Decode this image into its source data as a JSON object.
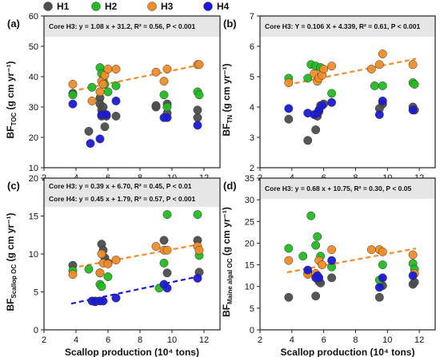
{
  "legend": {
    "entries": [
      {
        "name": "H1",
        "color": "#4d4d4d"
      },
      {
        "name": "H2",
        "color": "#22bb22"
      },
      {
        "name": "H3",
        "color": "#f28c28"
      },
      {
        "name": "H4",
        "color": "#1a1ad6"
      }
    ]
  },
  "xlabel": "Scallop production (10⁴ tons)",
  "chart_data": [
    {
      "panel": "(a)",
      "type": "scatter",
      "ylabel_main": "BF",
      "ylabel_sub": "TOC",
      "ylabel_unit": " (g cm yr⁻¹)",
      "annotation": "Core H3:  y = 1.08 x + 31.2, R² = 0.56, P < 0.001",
      "xlim": [
        2,
        13
      ],
      "ylim": [
        10,
        60
      ],
      "xticks": [
        2,
        4,
        6,
        8,
        10,
        12
      ],
      "yticks": [
        10,
        20,
        30,
        40,
        50,
        60
      ],
      "fits": [
        {
          "series": "H3",
          "slope": 1.08,
          "intercept": 31.2,
          "x": [
            3.7,
            11.8
          ]
        }
      ],
      "series": [
        {
          "name": "H1",
          "points": [
            [
              3.8,
              34.5
            ],
            [
              4.8,
              22
            ],
            [
              5.5,
              33
            ],
            [
              5.5,
              31
            ],
            [
              5.6,
              29
            ],
            [
              5.6,
              27
            ],
            [
              5.7,
              30
            ],
            [
              5.8,
              23.5
            ],
            [
              5.9,
              27
            ],
            [
              6.5,
              27
            ],
            [
              9,
              30
            ],
            [
              9,
              30.5
            ],
            [
              9.7,
              31
            ],
            [
              9.7,
              28
            ],
            [
              11.6,
              29
            ],
            [
              11.6,
              26.5
            ]
          ]
        },
        {
          "name": "H2",
          "points": [
            [
              3.8,
              34
            ],
            [
              5,
              36.5
            ],
            [
              5.5,
              43
            ],
            [
              5.6,
              41
            ],
            [
              5.7,
              39
            ],
            [
              5.8,
              37.5
            ],
            [
              6,
              35
            ],
            [
              6.5,
              37
            ],
            [
              9.5,
              34
            ],
            [
              9.7,
              30
            ],
            [
              11.6,
              35
            ],
            [
              11.7,
              34
            ]
          ]
        },
        {
          "name": "H3",
          "points": [
            [
              3.8,
              37.5
            ],
            [
              5,
              32
            ],
            [
              5.5,
              35
            ],
            [
              5.6,
              38.5
            ],
            [
              5.7,
              37.5
            ],
            [
              5.8,
              40.5
            ],
            [
              6,
              42.5
            ],
            [
              6.5,
              42.5
            ],
            [
              9,
              41.5
            ],
            [
              9.5,
              38.5
            ],
            [
              9.7,
              42.5
            ],
            [
              11.6,
              44
            ],
            [
              11.7,
              44
            ]
          ]
        },
        {
          "name": "H4",
          "points": [
            [
              3.8,
              31
            ],
            [
              4.9,
              18
            ],
            [
              5.5,
              19.5
            ],
            [
              5.6,
              27.5
            ],
            [
              5.9,
              27.5
            ],
            [
              6.5,
              32
            ],
            [
              9.5,
              26.5
            ],
            [
              9.7,
              26.5
            ],
            [
              11.6,
              24
            ]
          ]
        }
      ]
    },
    {
      "panel": "(b)",
      "type": "scatter",
      "ylabel_main": "BF",
      "ylabel_sub": "TN",
      "ylabel_unit": " (g cm yr⁻¹)",
      "annotation": "Core H3:  Y = 0.106 X + 4.339, R² = 0.61, P < 0.001",
      "xlim": [
        2,
        13
      ],
      "ylim": [
        2,
        7
      ],
      "xticks": [
        2,
        4,
        6,
        8,
        10,
        12
      ],
      "yticks": [
        2,
        3,
        4,
        5,
        6,
        7
      ],
      "fits": [
        {
          "series": "H3",
          "slope": 0.106,
          "intercept": 4.339,
          "x": [
            3.7,
            11.8
          ]
        }
      ],
      "series": [
        {
          "name": "H1",
          "points": [
            [
              3.8,
              3.6
            ],
            [
              5,
              2.9
            ],
            [
              5.5,
              3.25
            ],
            [
              5.6,
              3.7
            ],
            [
              5.7,
              3.85
            ],
            [
              5.8,
              4.05
            ],
            [
              6,
              4.1
            ],
            [
              9.7,
              4.1
            ],
            [
              9.5,
              3.95
            ],
            [
              11.6,
              4
            ],
            [
              11.7,
              3.9
            ]
          ]
        },
        {
          "name": "H2",
          "points": [
            [
              3.8,
              4.95
            ],
            [
              5,
              4.95
            ],
            [
              5.2,
              5.4
            ],
            [
              5.5,
              5.35
            ],
            [
              5.8,
              5.3
            ],
            [
              6.5,
              4.45
            ],
            [
              9.2,
              4.7
            ],
            [
              9.7,
              4.7
            ],
            [
              11.6,
              4.8
            ],
            [
              11.7,
              4.75
            ]
          ]
        },
        {
          "name": "H3",
          "points": [
            [
              3.8,
              4.8
            ],
            [
              5.4,
              5.1
            ],
            [
              5.6,
              4.85
            ],
            [
              5.7,
              4.95
            ],
            [
              5.9,
              5.05
            ],
            [
              6,
              5.25
            ],
            [
              6.5,
              5.35
            ],
            [
              9,
              5.25
            ],
            [
              9.5,
              5.4
            ],
            [
              9.7,
              5.75
            ],
            [
              11.6,
              5.4
            ]
          ]
        },
        {
          "name": "H4",
          "points": [
            [
              3.8,
              3.95
            ],
            [
              5,
              3.8
            ],
            [
              5.4,
              3.75
            ],
            [
              5.6,
              3.8
            ],
            [
              5.7,
              3.9
            ],
            [
              5.9,
              4.05
            ],
            [
              6.5,
              4.15
            ],
            [
              9.5,
              3.75
            ],
            [
              9.7,
              4.2
            ],
            [
              11.6,
              3.9
            ]
          ]
        }
      ]
    },
    {
      "panel": "(c)",
      "type": "scatter",
      "ylabel_main": "BF",
      "ylabel_sub": "Scallop OC",
      "ylabel_unit": " (g cm yr⁻¹)",
      "annotation": "Core H3:  y = 0.39 x + 6.70, R² = 0.45, P < 0.01",
      "annotation2": "Core H4:  y = 0.45 x + 1.79, R² = 0.57, P < 0.001",
      "xlim": [
        2,
        13
      ],
      "ylim": [
        0,
        20
      ],
      "xticks": [
        2,
        4,
        6,
        8,
        10,
        12
      ],
      "yticks": [
        0,
        5,
        10,
        15,
        20
      ],
      "fits": [
        {
          "series": "H3",
          "slope": 0.39,
          "intercept": 6.7,
          "x": [
            3.7,
            11.8
          ]
        },
        {
          "series": "H4",
          "slope": 0.45,
          "intercept": 1.79,
          "x": [
            3.7,
            11.8
          ]
        }
      ],
      "series": [
        {
          "name": "H1",
          "points": [
            [
              3.8,
              8.5
            ],
            [
              5.2,
              3.8
            ],
            [
              5.5,
              7.5
            ],
            [
              5.6,
              11.3
            ],
            [
              5.7,
              10.5
            ],
            [
              5.8,
              9.5
            ],
            [
              6,
              8.8
            ],
            [
              9.5,
              11.8
            ],
            [
              9.7,
              7.5
            ],
            [
              11.6,
              11.8
            ],
            [
              11.7,
              7.6
            ]
          ]
        },
        {
          "name": "H2",
          "points": [
            [
              3.8,
              7.8
            ],
            [
              4.8,
              8
            ],
            [
              5.5,
              6
            ],
            [
              5.6,
              5.7
            ],
            [
              6,
              7
            ],
            [
              9.2,
              5.5
            ],
            [
              9.5,
              8.8
            ],
            [
              9.7,
              15.2
            ],
            [
              11.6,
              15.2
            ],
            [
              11.7,
              9.8
            ]
          ]
        },
        {
          "name": "H3",
          "points": [
            [
              3.8,
              7.3
            ],
            [
              5.5,
              7.5
            ],
            [
              5.6,
              10
            ],
            [
              5.7,
              8.8
            ],
            [
              6,
              8.7
            ],
            [
              6.5,
              9.2
            ],
            [
              9,
              11
            ],
            [
              9.5,
              10.5
            ],
            [
              9.7,
              10.5
            ],
            [
              11.6,
              11
            ],
            [
              11.7,
              10.5
            ]
          ]
        },
        {
          "name": "H4",
          "points": [
            [
              5,
              3.8
            ],
            [
              5.2,
              3.7
            ],
            [
              5.5,
              3.8
            ],
            [
              5.7,
              3.8
            ],
            [
              6.5,
              4.2
            ],
            [
              9.5,
              6
            ],
            [
              9.7,
              5.5
            ],
            [
              11.6,
              6.8
            ]
          ]
        }
      ]
    },
    {
      "panel": "(d)",
      "type": "scatter",
      "ylabel_main": "BF",
      "ylabel_sub": "Maine algal OC",
      "ylabel_unit": " (g cm yr⁻¹)",
      "annotation": "Core H3:  y = 0.68 x + 10.75, R² = 0.30, P < 0.05",
      "xlim": [
        2,
        13
      ],
      "ylim": [
        0,
        35
      ],
      "xticks": [
        2,
        4,
        6,
        8,
        10,
        12
      ],
      "yticks": [
        0,
        5,
        10,
        15,
        20,
        25,
        30,
        35
      ],
      "fits": [
        {
          "series": "H3",
          "slope": 0.68,
          "intercept": 10.75,
          "x": [
            3.7,
            11.8
          ]
        }
      ],
      "series": [
        {
          "name": "H1",
          "points": [
            [
              3.8,
              7.5
            ],
            [
              5,
              13
            ],
            [
              5.5,
              7.8
            ],
            [
              5.6,
              12.5
            ],
            [
              5.7,
              11.2
            ],
            [
              5.8,
              10.8
            ],
            [
              6.5,
              12
            ],
            [
              9.5,
              7.5
            ],
            [
              9.7,
              10.2
            ],
            [
              11.6,
              10.5
            ],
            [
              11.7,
              11
            ]
          ]
        },
        {
          "name": "H2",
          "points": [
            [
              3.8,
              18.8
            ],
            [
              4.7,
              17
            ],
            [
              5.2,
              26.3
            ],
            [
              5.5,
              19.5
            ],
            [
              5.6,
              21.5
            ],
            [
              5.8,
              17
            ],
            [
              6.5,
              14.5
            ],
            [
              9.7,
              15
            ],
            [
              9.5,
              11.5
            ],
            [
              11.6,
              15.3
            ],
            [
              11.7,
              14
            ]
          ]
        },
        {
          "name": "H3",
          "points": [
            [
              3.8,
              16
            ],
            [
              5,
              12.8
            ],
            [
              5.5,
              13
            ],
            [
              5.7,
              16
            ],
            [
              5.9,
              15
            ],
            [
              6.5,
              18.5
            ],
            [
              9,
              18.5
            ],
            [
              9.5,
              18.5
            ],
            [
              9.7,
              18
            ],
            [
              11.6,
              17.3
            ],
            [
              11.7,
              13
            ]
          ]
        },
        {
          "name": "H4",
          "points": [
            [
              5,
              13.8
            ],
            [
              5.5,
              12
            ],
            [
              5.6,
              12.5
            ],
            [
              5.7,
              12
            ],
            [
              6.5,
              16
            ],
            [
              9.5,
              9.8
            ],
            [
              9.7,
              12
            ],
            [
              11.6,
              12.5
            ]
          ]
        }
      ]
    }
  ]
}
